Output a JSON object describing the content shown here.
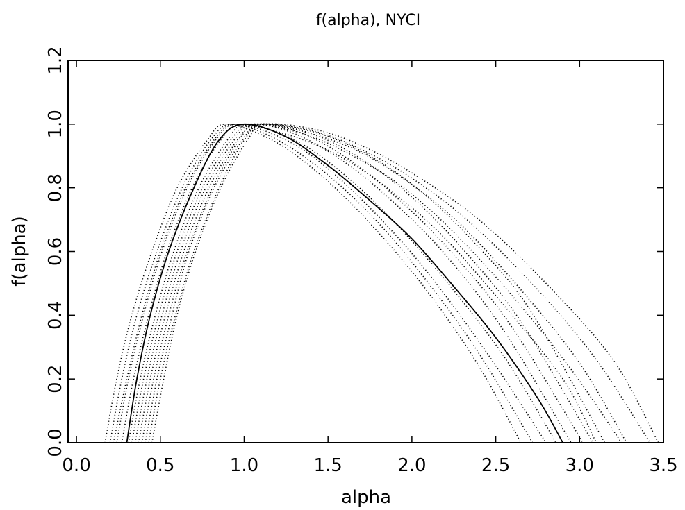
{
  "chart_data": {
    "type": "line",
    "title": "f(alpha), NYCI",
    "xlabel": "alpha",
    "ylabel": "f(alpha)",
    "xlim": [
      -0.05,
      3.5
    ],
    "ylim": [
      0.0,
      1.2
    ],
    "xticks": [
      "0.0",
      "0.5",
      "1.0",
      "1.5",
      "2.0",
      "2.5",
      "3.0",
      "3.5"
    ],
    "yticks": [
      "0.0",
      "0.2",
      "0.4",
      "0.6",
      "0.8",
      "1.0",
      "1.2"
    ],
    "grid": false,
    "legend": "none",
    "main_series": {
      "style": "solid",
      "points": [
        [
          0.3,
          0.0
        ],
        [
          0.36,
          0.2
        ],
        [
          0.44,
          0.4
        ],
        [
          0.55,
          0.6
        ],
        [
          0.7,
          0.8
        ],
        [
          0.85,
          0.95
        ],
        [
          1.0,
          1.0
        ],
        [
          1.25,
          0.96
        ],
        [
          1.5,
          0.87
        ],
        [
          1.75,
          0.76
        ],
        [
          2.0,
          0.64
        ],
        [
          2.25,
          0.49
        ],
        [
          2.5,
          0.33
        ],
        [
          2.75,
          0.14
        ],
        [
          2.9,
          0.0
        ]
      ]
    },
    "ensemble_series": [
      {
        "style": "dotted",
        "points": [
          [
            0.17,
            0.0
          ],
          [
            0.24,
            0.2
          ],
          [
            0.33,
            0.4
          ],
          [
            0.45,
            0.6
          ],
          [
            0.6,
            0.8
          ],
          [
            0.78,
            0.95
          ],
          [
            0.9,
            1.0
          ],
          [
            1.2,
            0.94
          ],
          [
            1.5,
            0.82
          ],
          [
            1.8,
            0.66
          ],
          [
            2.1,
            0.47
          ],
          [
            2.4,
            0.24
          ],
          [
            2.65,
            0.0
          ]
        ]
      },
      {
        "style": "dotted",
        "points": [
          [
            0.2,
            0.0
          ],
          [
            0.27,
            0.2
          ],
          [
            0.36,
            0.4
          ],
          [
            0.48,
            0.6
          ],
          [
            0.63,
            0.8
          ],
          [
            0.8,
            0.95
          ],
          [
            0.93,
            1.0
          ],
          [
            1.2,
            0.95
          ],
          [
            1.5,
            0.84
          ],
          [
            1.8,
            0.69
          ],
          [
            2.1,
            0.5
          ],
          [
            2.4,
            0.28
          ],
          [
            2.72,
            0.0
          ]
        ]
      },
      {
        "style": "dotted",
        "points": [
          [
            0.24,
            0.0
          ],
          [
            0.31,
            0.2
          ],
          [
            0.4,
            0.4
          ],
          [
            0.51,
            0.6
          ],
          [
            0.66,
            0.8
          ],
          [
            0.83,
            0.95
          ],
          [
            0.96,
            1.0
          ],
          [
            1.25,
            0.95
          ],
          [
            1.5,
            0.86
          ],
          [
            1.8,
            0.71
          ],
          [
            2.1,
            0.53
          ],
          [
            2.45,
            0.28
          ],
          [
            2.8,
            0.0
          ]
        ]
      },
      {
        "style": "dotted",
        "points": [
          [
            0.27,
            0.0
          ],
          [
            0.34,
            0.2
          ],
          [
            0.43,
            0.4
          ],
          [
            0.54,
            0.6
          ],
          [
            0.69,
            0.8
          ],
          [
            0.86,
            0.95
          ],
          [
            0.99,
            1.0
          ],
          [
            1.3,
            0.95
          ],
          [
            1.6,
            0.84
          ],
          [
            1.9,
            0.69
          ],
          [
            2.2,
            0.51
          ],
          [
            2.55,
            0.27
          ],
          [
            2.86,
            0.0
          ]
        ]
      },
      {
        "style": "dotted",
        "points": [
          [
            0.33,
            0.0
          ],
          [
            0.4,
            0.2
          ],
          [
            0.49,
            0.4
          ],
          [
            0.6,
            0.6
          ],
          [
            0.75,
            0.8
          ],
          [
            0.92,
            0.95
          ],
          [
            1.04,
            1.0
          ],
          [
            1.3,
            0.97
          ],
          [
            1.6,
            0.88
          ],
          [
            1.9,
            0.75
          ],
          [
            2.2,
            0.59
          ],
          [
            2.55,
            0.35
          ],
          [
            2.95,
            0.0
          ]
        ]
      },
      {
        "style": "dotted",
        "points": [
          [
            0.37,
            0.0
          ],
          [
            0.44,
            0.2
          ],
          [
            0.53,
            0.4
          ],
          [
            0.64,
            0.6
          ],
          [
            0.79,
            0.8
          ],
          [
            0.96,
            0.95
          ],
          [
            1.08,
            1.0
          ],
          [
            1.35,
            0.97
          ],
          [
            1.65,
            0.88
          ],
          [
            1.95,
            0.75
          ],
          [
            2.25,
            0.59
          ],
          [
            2.6,
            0.36
          ],
          [
            3.02,
            0.0
          ]
        ]
      },
      {
        "style": "dotted",
        "points": [
          [
            0.41,
            0.0
          ],
          [
            0.48,
            0.2
          ],
          [
            0.57,
            0.4
          ],
          [
            0.67,
            0.6
          ],
          [
            0.82,
            0.8
          ],
          [
            0.99,
            0.95
          ],
          [
            1.1,
            1.0
          ],
          [
            1.4,
            0.97
          ],
          [
            1.7,
            0.89
          ],
          [
            2.0,
            0.77
          ],
          [
            2.3,
            0.61
          ],
          [
            2.65,
            0.38
          ],
          [
            3.08,
            0.0
          ]
        ]
      },
      {
        "style": "dotted",
        "points": [
          [
            0.45,
            0.0
          ],
          [
            0.52,
            0.2
          ],
          [
            0.6,
            0.4
          ],
          [
            0.71,
            0.6
          ],
          [
            0.86,
            0.8
          ],
          [
            1.02,
            0.95
          ],
          [
            1.12,
            1.0
          ],
          [
            1.45,
            0.97
          ],
          [
            1.75,
            0.9
          ],
          [
            2.05,
            0.79
          ],
          [
            2.35,
            0.64
          ],
          [
            2.7,
            0.42
          ],
          [
            3.15,
            0.0
          ]
        ]
      },
      {
        "style": "dotted",
        "points": [
          [
            0.22,
            0.0
          ],
          [
            0.3,
            0.2
          ],
          [
            0.39,
            0.4
          ],
          [
            0.5,
            0.6
          ],
          [
            0.65,
            0.8
          ],
          [
            0.82,
            0.95
          ],
          [
            0.95,
            1.0
          ],
          [
            1.3,
            0.96
          ],
          [
            1.6,
            0.89
          ],
          [
            1.9,
            0.78
          ],
          [
            2.2,
            0.64
          ],
          [
            2.55,
            0.43
          ],
          [
            2.9,
            0.2
          ],
          [
            3.1,
            0.0
          ]
        ]
      },
      {
        "style": "dotted",
        "points": [
          [
            0.31,
            0.0
          ],
          [
            0.38,
            0.2
          ],
          [
            0.47,
            0.4
          ],
          [
            0.58,
            0.6
          ],
          [
            0.73,
            0.8
          ],
          [
            0.9,
            0.95
          ],
          [
            1.02,
            1.0
          ],
          [
            1.35,
            0.97
          ],
          [
            1.65,
            0.9
          ],
          [
            1.95,
            0.8
          ],
          [
            2.25,
            0.66
          ],
          [
            2.6,
            0.46
          ],
          [
            2.95,
            0.23
          ],
          [
            3.25,
            0.0
          ]
        ]
      },
      {
        "style": "dotted",
        "points": [
          [
            0.39,
            0.0
          ],
          [
            0.46,
            0.2
          ],
          [
            0.55,
            0.4
          ],
          [
            0.66,
            0.6
          ],
          [
            0.81,
            0.8
          ],
          [
            0.97,
            0.95
          ],
          [
            1.08,
            1.0
          ],
          [
            1.4,
            0.97
          ],
          [
            1.7,
            0.91
          ],
          [
            2.0,
            0.81
          ],
          [
            2.3,
            0.68
          ],
          [
            2.65,
            0.48
          ],
          [
            3.0,
            0.25
          ],
          [
            3.28,
            0.0
          ]
        ]
      },
      {
        "style": "dotted",
        "points": [
          [
            0.35,
            0.0
          ],
          [
            0.42,
            0.2
          ],
          [
            0.51,
            0.4
          ],
          [
            0.62,
            0.6
          ],
          [
            0.77,
            0.8
          ],
          [
            0.94,
            0.95
          ],
          [
            1.06,
            1.0
          ],
          [
            1.4,
            0.98
          ],
          [
            1.7,
            0.92
          ],
          [
            2.0,
            0.83
          ],
          [
            2.35,
            0.69
          ],
          [
            2.75,
            0.48
          ],
          [
            3.1,
            0.26
          ],
          [
            3.42,
            0.0
          ]
        ]
      },
      {
        "style": "dotted",
        "points": [
          [
            0.43,
            0.0
          ],
          [
            0.5,
            0.2
          ],
          [
            0.59,
            0.4
          ],
          [
            0.7,
            0.6
          ],
          [
            0.85,
            0.8
          ],
          [
            1.0,
            0.95
          ],
          [
            1.12,
            1.0
          ],
          [
            1.45,
            0.98
          ],
          [
            1.75,
            0.92
          ],
          [
            2.05,
            0.83
          ],
          [
            2.4,
            0.7
          ],
          [
            2.8,
            0.5
          ],
          [
            3.2,
            0.26
          ],
          [
            3.47,
            0.0
          ]
        ]
      }
    ]
  }
}
